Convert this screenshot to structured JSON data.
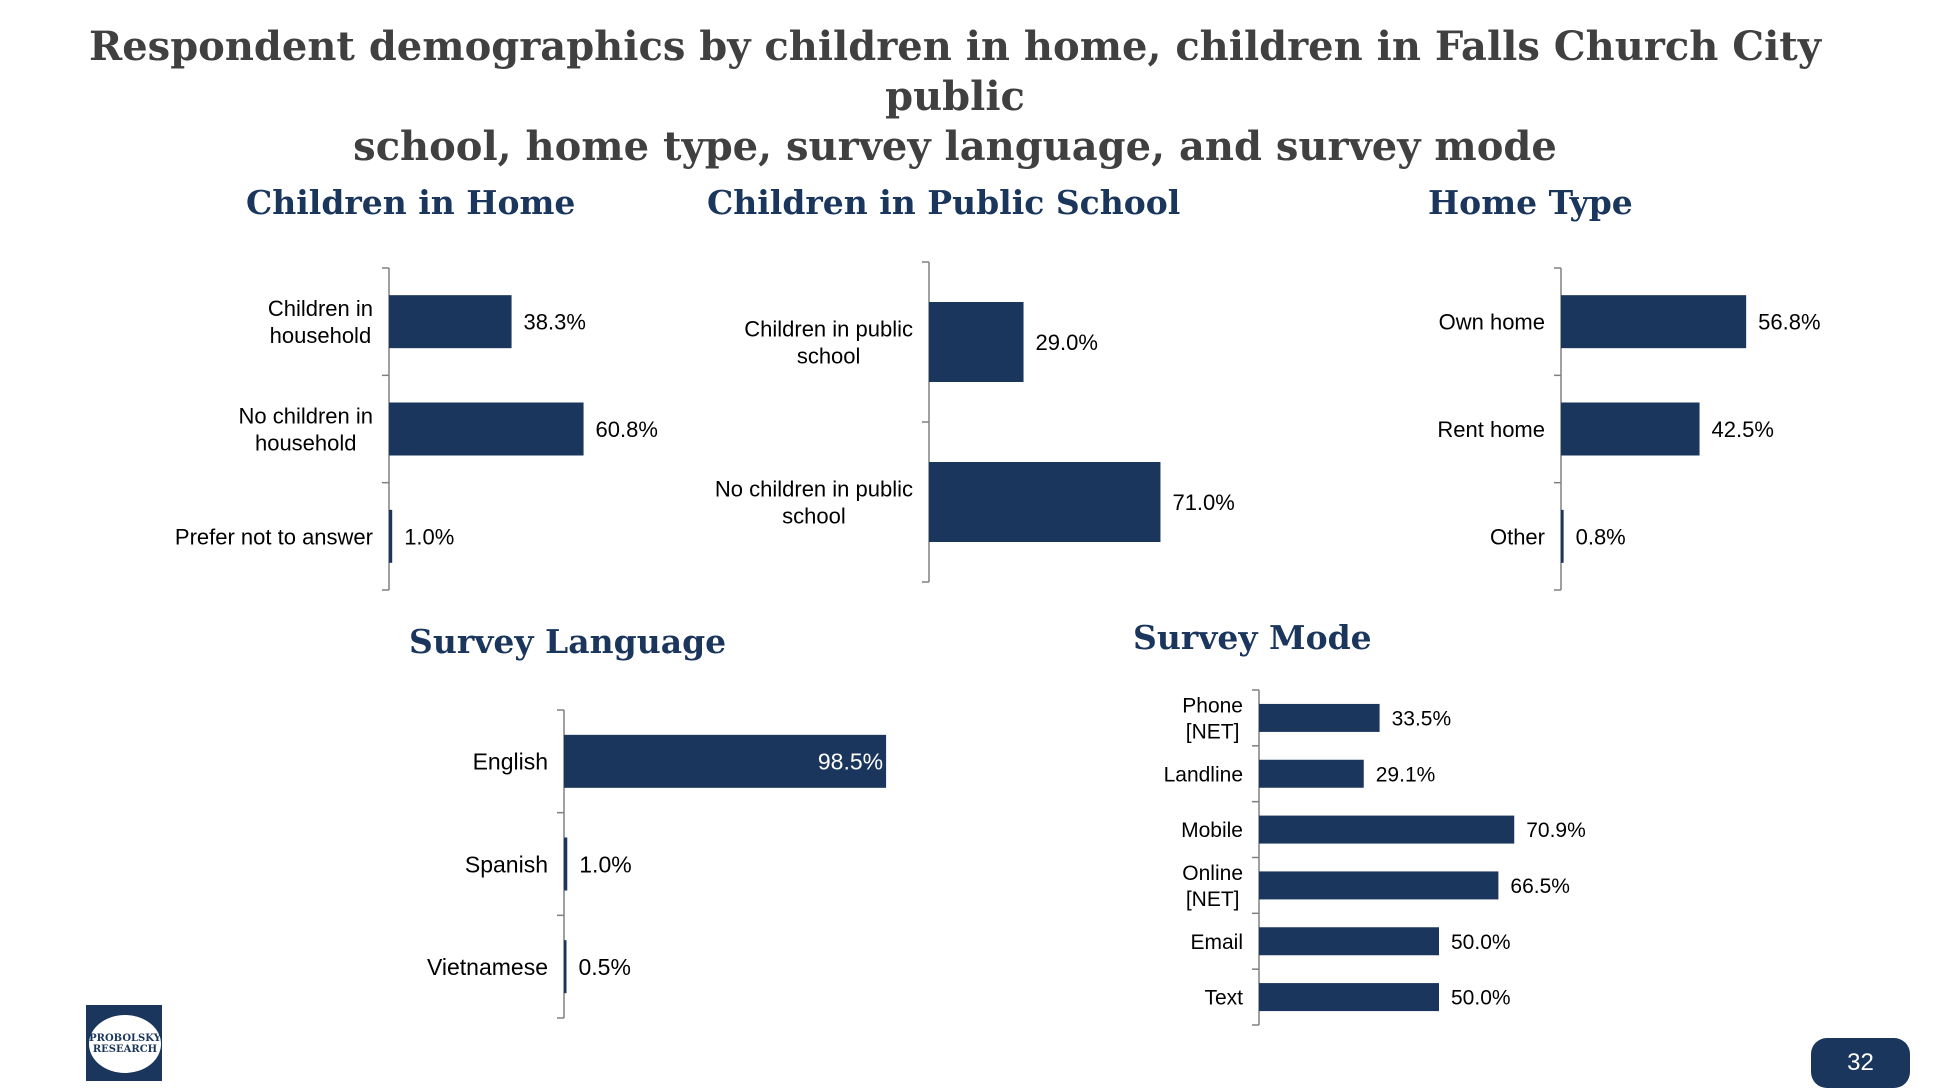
{
  "page": {
    "title_line1": "Respondent demographics by children in home, children in Falls Church City public",
    "title_line2": "school, home type, survey language, and survey mode",
    "logo_text_line1": "PROBOLSKY",
    "logo_text_line2": "RESEARCH",
    "page_number": "32"
  },
  "colors": {
    "bar": "#1b365d",
    "title": "#404040",
    "chart_title": "#1b365d",
    "axis": "#808080"
  },
  "chart_data": [
    {
      "type": "bar",
      "orientation": "horizontal",
      "title": "Children in Home",
      "categories": [
        [
          "Children in",
          "household"
        ],
        [
          "No children in",
          "household"
        ],
        [
          "Prefer not to answer"
        ]
      ],
      "values": [
        38.3,
        60.8,
        1.0
      ],
      "labels": [
        "38.3%",
        "60.8%",
        "1.0%"
      ],
      "xlim": [
        0,
        100
      ]
    },
    {
      "type": "bar",
      "orientation": "horizontal",
      "title": "Children in Public School",
      "categories": [
        [
          "Children in public",
          "school"
        ],
        [
          "No children in public",
          "school"
        ]
      ],
      "values": [
        29.0,
        71.0
      ],
      "labels": [
        "29.0%",
        "71.0%"
      ],
      "xlim": [
        0,
        100
      ]
    },
    {
      "type": "bar",
      "orientation": "horizontal",
      "title": "Home Type",
      "categories": [
        [
          "Own home"
        ],
        [
          "Rent home"
        ],
        [
          "Other"
        ]
      ],
      "values": [
        56.8,
        42.5,
        0.8
      ],
      "labels": [
        "56.8%",
        "42.5%",
        "0.8%"
      ],
      "xlim": [
        0,
        100
      ]
    },
    {
      "type": "bar",
      "orientation": "horizontal",
      "title": "Survey Language",
      "categories": [
        [
          "English"
        ],
        [
          "Spanish"
        ],
        [
          "Vietnamese"
        ]
      ],
      "values": [
        98.5,
        1.0,
        0.5
      ],
      "labels": [
        "98.5%",
        "1.0%",
        "0.5%"
      ],
      "xlim": [
        0,
        100
      ]
    },
    {
      "type": "bar",
      "orientation": "horizontal",
      "title": "Survey Mode",
      "categories": [
        [
          "Phone",
          "[NET]"
        ],
        [
          "Landline"
        ],
        [
          "Mobile"
        ],
        [
          "Online",
          "[NET]"
        ],
        [
          "Email"
        ],
        [
          "Text"
        ]
      ],
      "values": [
        33.5,
        29.1,
        70.9,
        66.5,
        50.0,
        50.0
      ],
      "labels": [
        "33.5%",
        "29.1%",
        "70.9%",
        "66.5%",
        "50.0%",
        "50.0%"
      ],
      "xlim": [
        0,
        100
      ]
    }
  ]
}
